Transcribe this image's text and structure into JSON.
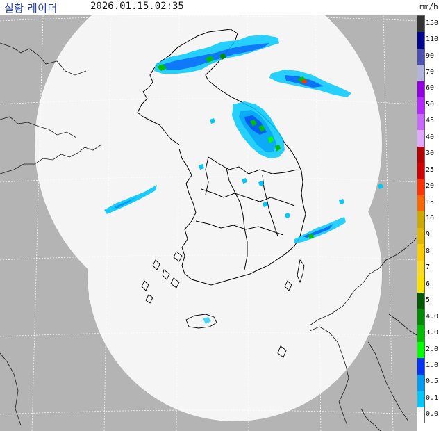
{
  "header": {
    "title": "실황 레이더",
    "timestamp": "2026.01.15.02:35",
    "unit": "mm/h"
  },
  "legend": {
    "items": [
      {
        "label": "150",
        "color": "#333333"
      },
      {
        "label": "110",
        "color": "#000390"
      },
      {
        "label": "90",
        "color": "#4c4eb1"
      },
      {
        "label": "70",
        "color": "#b3b4de"
      },
      {
        "label": "60",
        "color": "#9300e4"
      },
      {
        "label": "50",
        "color": "#b329ff"
      },
      {
        "label": "45",
        "color": "#c969ff"
      },
      {
        "label": "40",
        "color": "#e0a9ff"
      },
      {
        "label": "30",
        "color": "#b40000"
      },
      {
        "label": "25",
        "color": "#d20000"
      },
      {
        "label": "20",
        "color": "#ff3200"
      },
      {
        "label": "15",
        "color": "#ff6600"
      },
      {
        "label": "10",
        "color": "#ccaa00"
      },
      {
        "label": "9",
        "color": "#e0b900"
      },
      {
        "label": "8",
        "color": "#f9cd00"
      },
      {
        "label": "7",
        "color": "#ffdc1f"
      },
      {
        "label": "6",
        "color": "#ffe100"
      },
      {
        "label": "5",
        "color": "#005a00"
      },
      {
        "label": "4.0",
        "color": "#008c00"
      },
      {
        "label": "3.0",
        "color": "#00be00"
      },
      {
        "label": "2.0",
        "color": "#00ff00"
      },
      {
        "label": "1.0",
        "color": "#0033f5"
      },
      {
        "label": "0.5",
        "color": "#009bf5"
      },
      {
        "label": "0.1",
        "color": "#00c8ff"
      },
      {
        "label": "0.0",
        "color": "#ffffff"
      }
    ]
  },
  "colors": {
    "background": "#b4b4b4",
    "coverage": "#f5f5f5",
    "coastline": "#000000",
    "grid": "#ffffff",
    "title": "#1f3fbf"
  }
}
